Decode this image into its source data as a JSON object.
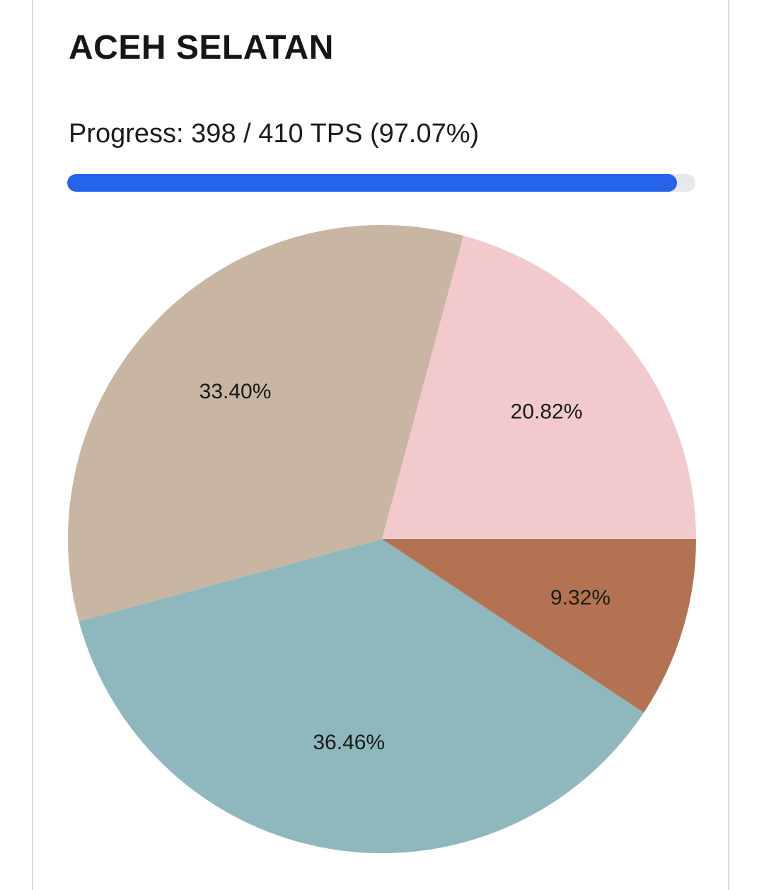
{
  "card": {
    "title": "ACEH SELATAN",
    "progress_text": "Progress: 398 / 410 TPS (97.07%)",
    "progress_fraction": 0.9707,
    "progress_color": "#2563eb",
    "track_color": "#e6e8ec"
  },
  "chart_data": {
    "type": "pie",
    "title": "",
    "start_angle_deg": 0,
    "direction": "clockwise-from-3-oclock",
    "slices": [
      {
        "value": 9.32,
        "label": "9.32%",
        "color": "#b37352"
      },
      {
        "value": 36.46,
        "label": "36.46%",
        "color": "#8fb8be"
      },
      {
        "value": 33.4,
        "label": "33.40%",
        "color": "#c8b6a3"
      },
      {
        "value": 20.82,
        "label": "20.82%",
        "color": "#f2cacd"
      }
    ]
  }
}
